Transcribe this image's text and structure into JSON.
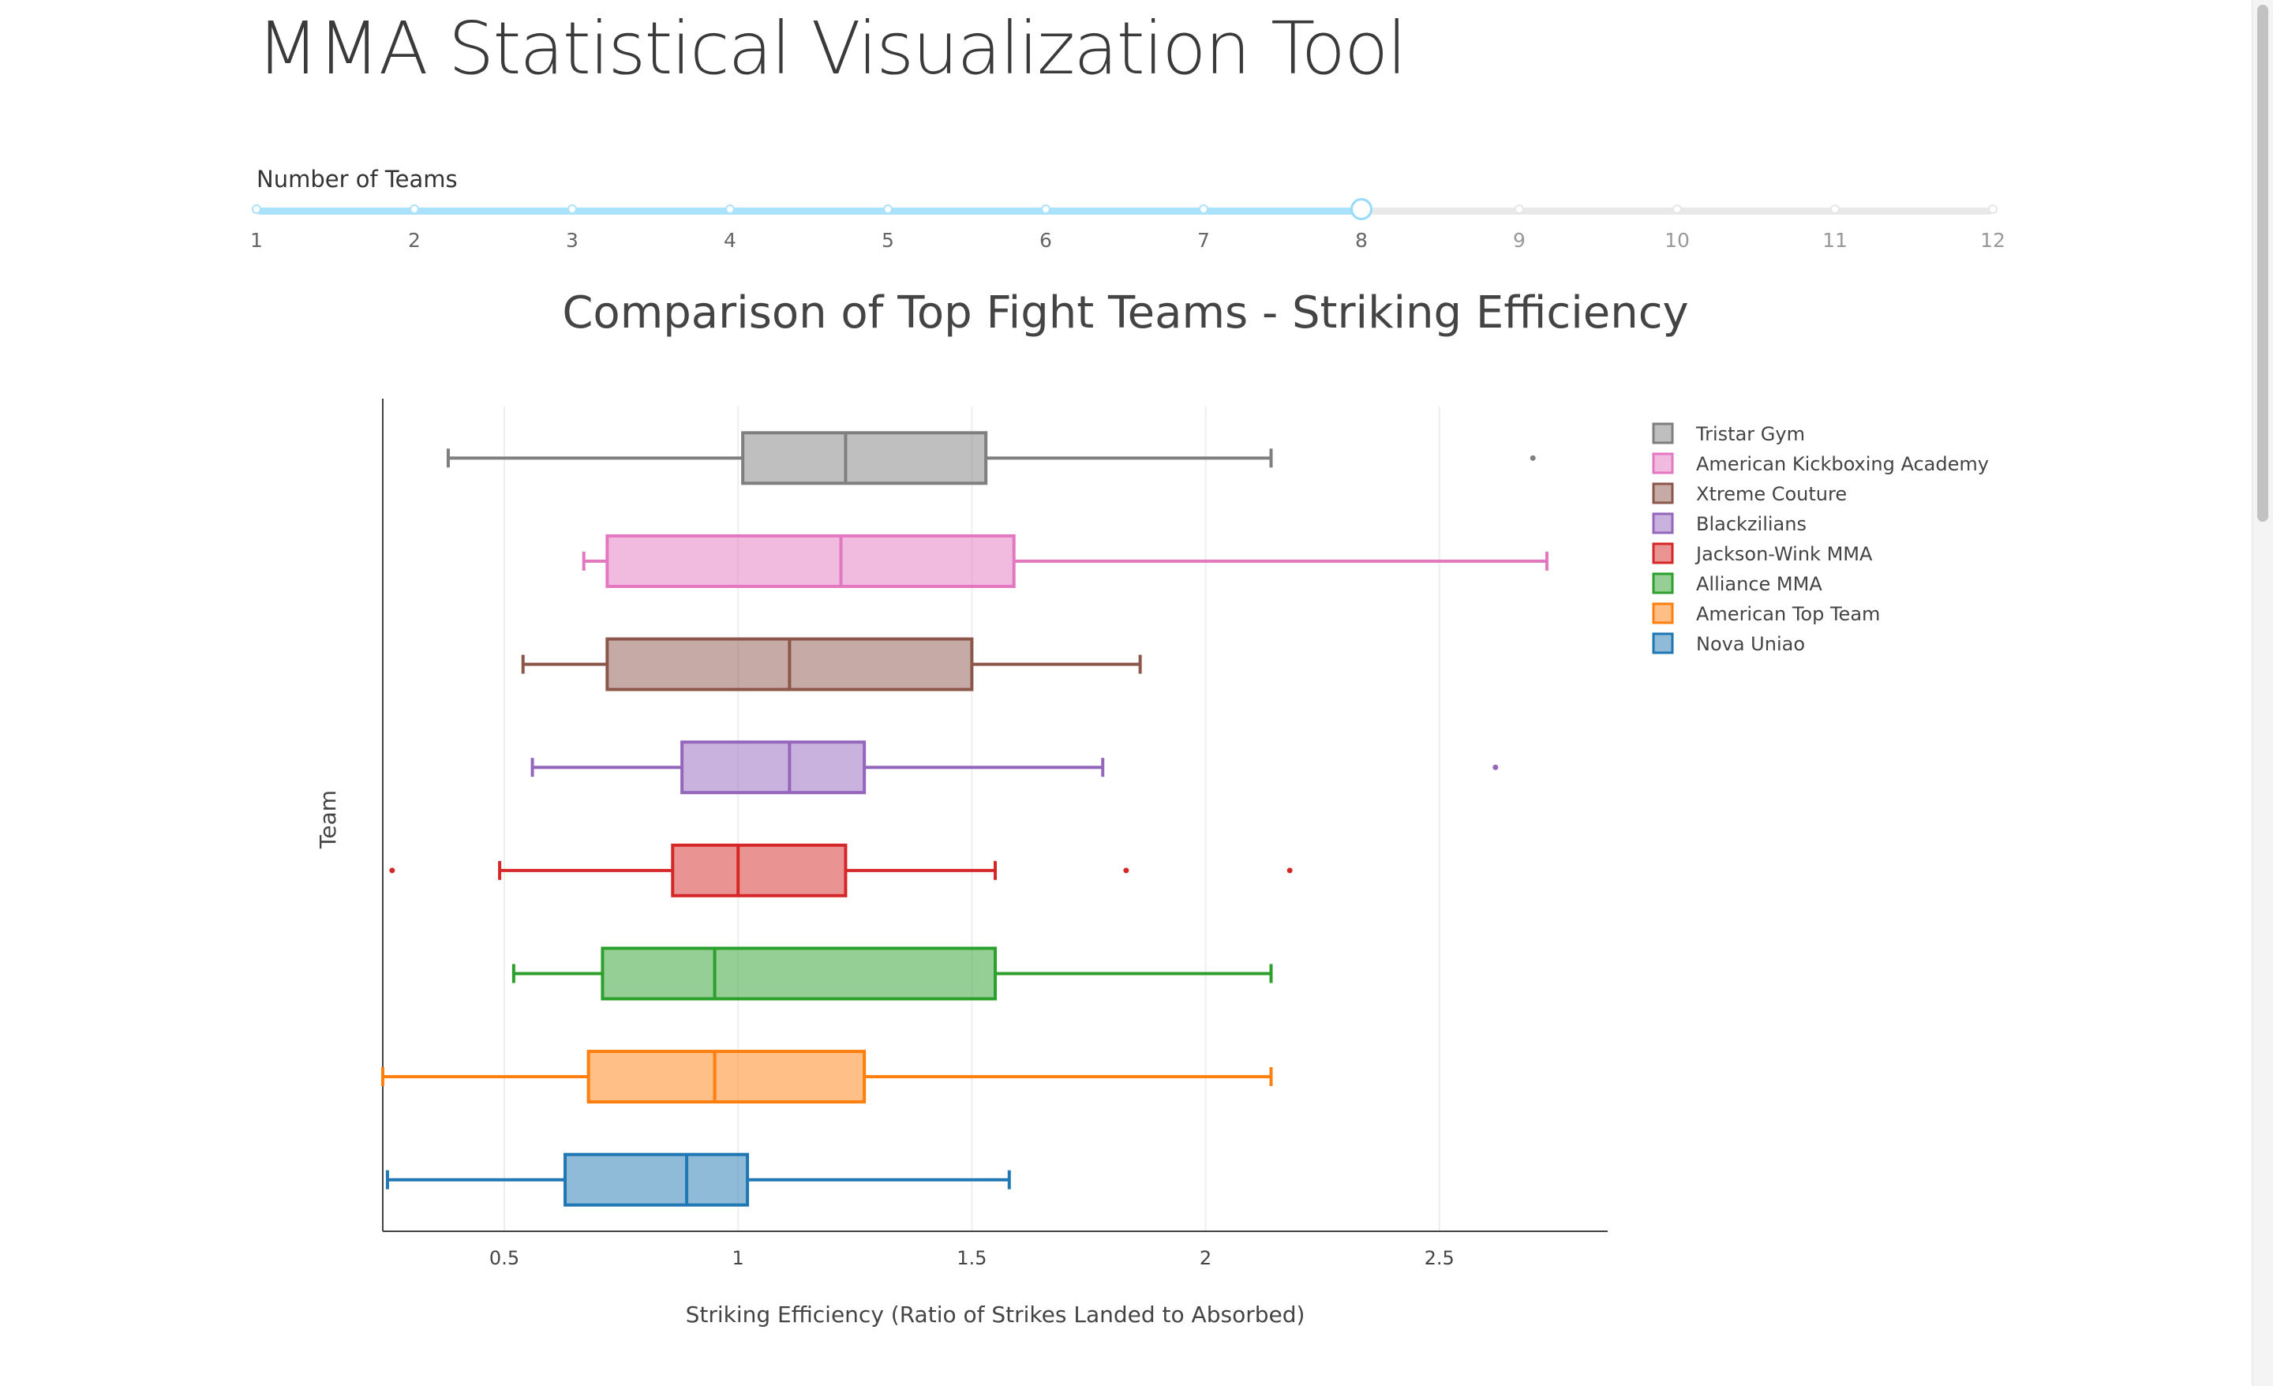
{
  "page": {
    "title": "MMA Statistical Visualization Tool"
  },
  "slider": {
    "label": "Number of Teams",
    "min": 1,
    "max": 12,
    "value": 8,
    "marks": [
      "1",
      "2",
      "3",
      "4",
      "5",
      "6",
      "7",
      "8",
      "9",
      "10",
      "11",
      "12"
    ],
    "accent_color": "#abe2fb"
  },
  "chart_data": {
    "type": "box",
    "orientation": "horizontal",
    "title": "Comparison of Top Fight Teams - Striking Efficiency",
    "xlabel": "Striking Efficiency (Ratio of Strikes Landed to Absorbed)",
    "ylabel": "Team",
    "xlim": [
      0.24,
      2.86
    ],
    "xticks": [
      0.5,
      1,
      1.5,
      2,
      2.5
    ],
    "xtick_labels": [
      "0.5",
      "1",
      "1.5",
      "2",
      "2.5"
    ],
    "grid": true,
    "legend_position": "top-right",
    "series": [
      {
        "name": "Tristar Gym",
        "color": "#7f7f7f",
        "min": 0.38,
        "q1": 1.01,
        "median": 1.23,
        "q3": 1.53,
        "max": 2.14,
        "outliers": [
          2.7
        ]
      },
      {
        "name": "American Kickboxing Academy",
        "color": "#e377c2",
        "min": 0.67,
        "q1": 0.72,
        "median": 1.22,
        "q3": 1.59,
        "max": 2.73,
        "outliers": []
      },
      {
        "name": "Xtreme Couture",
        "color": "#8c564b",
        "min": 0.54,
        "q1": 0.72,
        "median": 1.11,
        "q3": 1.5,
        "max": 1.86,
        "outliers": []
      },
      {
        "name": "Blackzilians",
        "color": "#9467bd",
        "min": 0.56,
        "q1": 0.88,
        "median": 1.11,
        "q3": 1.27,
        "max": 1.78,
        "outliers": [
          2.62
        ]
      },
      {
        "name": "Jackson-Wink MMA",
        "color": "#d62728",
        "min": 0.49,
        "q1": 0.86,
        "median": 1.0,
        "q3": 1.23,
        "max": 1.55,
        "outliers": [
          0.26,
          1.83,
          2.18
        ]
      },
      {
        "name": "Alliance MMA",
        "color": "#2ca02c",
        "min": 0.52,
        "q1": 0.71,
        "median": 0.95,
        "q3": 1.55,
        "max": 2.14,
        "outliers": []
      },
      {
        "name": "American Top Team",
        "color": "#ff7f0e",
        "min": 0.24,
        "q1": 0.68,
        "median": 0.95,
        "q3": 1.27,
        "max": 2.14,
        "outliers": []
      },
      {
        "name": "Nova Uniao",
        "color": "#1f77b4",
        "min": 0.25,
        "q1": 0.63,
        "median": 0.89,
        "q3": 1.02,
        "max": 1.58,
        "outliers": []
      }
    ]
  }
}
